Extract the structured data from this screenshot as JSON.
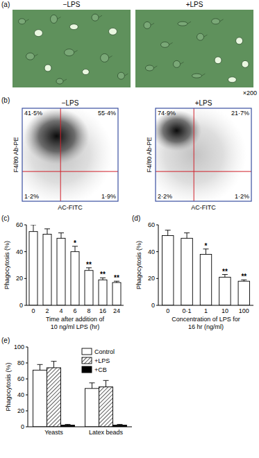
{
  "panels": {
    "a": {
      "panel_label": "(a)",
      "images": [
        {
          "label": "−LPS"
        },
        {
          "label": "+LPS"
        }
      ],
      "magnification": "×200"
    },
    "b": {
      "panel_label": "(b)",
      "x_label": "AC-FITC",
      "y_label": "F4/80 Ab-PE",
      "plots": [
        {
          "label": "−LPS",
          "quadrants": {
            "upper_left": {
              "value": 41.5,
              "label": "41·5%"
            },
            "upper_right": {
              "value": 55.4,
              "label": "55·4%"
            },
            "lower_left": {
              "value": 1.2,
              "label": "1·2%"
            },
            "lower_right": {
              "value": 1.9,
              "label": "1·9%"
            }
          }
        },
        {
          "label": "+LPS",
          "quadrants": {
            "upper_left": {
              "value": 74.9,
              "label": "74·9%"
            },
            "upper_right": {
              "value": 21.7,
              "label": "21·7%"
            },
            "lower_left": {
              "value": 2.2,
              "label": "2·2%"
            },
            "lower_right": {
              "value": 1.2,
              "label": "1·2%"
            }
          }
        }
      ]
    }
  },
  "chart_data": [
    {
      "panel_label": "(c)",
      "type": "bar",
      "categories": [
        "0",
        "2",
        "4",
        "6",
        "8",
        "16",
        "24"
      ],
      "values": [
        55,
        53,
        50,
        40,
        26,
        19,
        17
      ],
      "errors": [
        5,
        4,
        4,
        4,
        2,
        1.5,
        1
      ],
      "significance": [
        null,
        null,
        null,
        "*",
        "**",
        "**",
        "**"
      ],
      "color": "#ffffff",
      "x_label": "Time after addition of\n10 ng/ml LPS (hr)",
      "y_label": "Phagocytosis (%)",
      "ylim": [
        0,
        60
      ],
      "yticks": [
        0,
        20,
        40,
        60
      ]
    },
    {
      "panel_label": "(d)",
      "type": "bar",
      "categories": [
        "0",
        "0·1",
        "1",
        "10",
        "100"
      ],
      "values": [
        52,
        50,
        38,
        21,
        18
      ],
      "errors": [
        4,
        4,
        4,
        2,
        1
      ],
      "significance": [
        null,
        null,
        "*",
        "**",
        "**"
      ],
      "color": "#ffffff",
      "x_label": "Concentration of LPS for\n16 hr (ng/ml)",
      "y_label": "Phagocytosis (%)",
      "ylim": [
        0,
        60
      ],
      "yticks": [
        0,
        20,
        40,
        60
      ]
    },
    {
      "panel_label": "(e)",
      "type": "bar",
      "categories": [
        "Yeasts",
        "Latex beads"
      ],
      "series": [
        {
          "name": "Control",
          "color": "#ffffff",
          "values": [
            71,
            48
          ],
          "errors": [
            7,
            7
          ]
        },
        {
          "name": "+LPS",
          "color": "#333333",
          "marker": "hatch",
          "values": [
            74,
            50
          ],
          "errors": [
            8,
            8
          ]
        },
        {
          "name": "+CB",
          "color": "#000000",
          "values": [
            2,
            2
          ],
          "errors": [
            1,
            1
          ]
        }
      ],
      "legend": "upper right",
      "y_label": "Phagocytosis (%)",
      "ylim": [
        0,
        100
      ],
      "yticks": [
        0,
        20,
        40,
        60,
        80,
        100
      ]
    }
  ]
}
